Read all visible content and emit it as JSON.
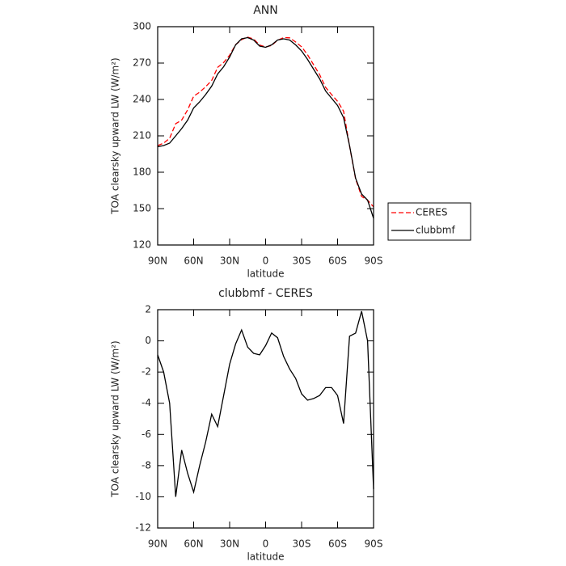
{
  "chart_data": [
    {
      "type": "line",
      "title": "ANN",
      "xlabel": "latitude",
      "ylabel": "TOA clearsky upward LW (W/m²)",
      "x": [
        90,
        85,
        80,
        75,
        70,
        65,
        60,
        55,
        50,
        45,
        40,
        35,
        30,
        25,
        20,
        15,
        10,
        5,
        0,
        -5,
        -10,
        -15,
        -20,
        -25,
        -30,
        -35,
        -40,
        -45,
        -50,
        -55,
        -60,
        -65,
        -70,
        -75,
        -80,
        -85,
        -90
      ],
      "xlim": [
        90,
        -90
      ],
      "xticks": [
        {
          "value": 90,
          "label": "90N"
        },
        {
          "value": 60,
          "label": "60N"
        },
        {
          "value": 30,
          "label": "30N"
        },
        0,
        {
          "value": -30,
          "label": "30S"
        },
        {
          "value": -60,
          "label": "60S"
        },
        {
          "value": -90,
          "label": "90S"
        }
      ],
      "ylim": [
        120,
        300
      ],
      "yticks": [
        120,
        150,
        180,
        210,
        240,
        270,
        300
      ],
      "legend": "outside right",
      "series": [
        {
          "name": "CERES",
          "color": "#ff0000",
          "dashed": true,
          "values": [
            201.9,
            204,
            208,
            220,
            223,
            231.5,
            242.7,
            246,
            250.5,
            255.7,
            266.5,
            270.5,
            276.5,
            285.2,
            289.3,
            291.4,
            289.8,
            284.9,
            283.3,
            284.5,
            288.8,
            291,
            290.8,
            287.4,
            283.4,
            276.8,
            268.7,
            260.5,
            250,
            244,
            238.5,
            230.3,
            201.7,
            174.5,
            160.1,
            157,
            151.5
          ]
        },
        {
          "name": "clubbmf",
          "color": "#000000",
          "dashed": false,
          "values": [
            201,
            202,
            204,
            210,
            216,
            223,
            233,
            238,
            244,
            251,
            261,
            267,
            275,
            285,
            290,
            291,
            289,
            284,
            283,
            285,
            289,
            290,
            289,
            285,
            280,
            273,
            265,
            257,
            247,
            241,
            235,
            225,
            202,
            175,
            162,
            157,
            142
          ]
        }
      ]
    },
    {
      "type": "line",
      "title": "clubbmf - CERES",
      "xlabel": "latitude",
      "ylabel": "TOA clearsky upward LW (W/m²)",
      "x": [
        90,
        85,
        80,
        75,
        70,
        65,
        60,
        55,
        50,
        45,
        40,
        35,
        30,
        25,
        20,
        15,
        10,
        5,
        0,
        -5,
        -10,
        -15,
        -20,
        -25,
        -30,
        -35,
        -40,
        -45,
        -50,
        -55,
        -60,
        -65,
        -70,
        -75,
        -80,
        -85,
        -90
      ],
      "xlim": [
        90,
        -90
      ],
      "xticks": [
        {
          "value": 90,
          "label": "90N"
        },
        {
          "value": 60,
          "label": "60N"
        },
        {
          "value": 30,
          "label": "30N"
        },
        0,
        {
          "value": -30,
          "label": "30S"
        },
        {
          "value": -60,
          "label": "60S"
        },
        {
          "value": -90,
          "label": "90S"
        }
      ],
      "ylim": [
        -12,
        2
      ],
      "yticks": [
        -12,
        -10,
        -8,
        -6,
        -4,
        -2,
        0,
        2
      ],
      "series": [
        {
          "color": "#000000",
          "dashed": false,
          "values": [
            -0.9,
            -2,
            -4,
            -10,
            -7,
            -8.5,
            -9.7,
            -8,
            -6.5,
            -4.7,
            -5.5,
            -3.5,
            -1.5,
            -0.2,
            0.7,
            -0.4,
            -0.8,
            -0.9,
            -0.3,
            0.5,
            0.2,
            -1,
            -1.8,
            -2.4,
            -3.4,
            -3.8,
            -3.7,
            -3.5,
            -3,
            -3,
            -3.5,
            -5.3,
            0.3,
            0.5,
            1.9,
            0,
            -9.5
          ]
        }
      ]
    }
  ]
}
